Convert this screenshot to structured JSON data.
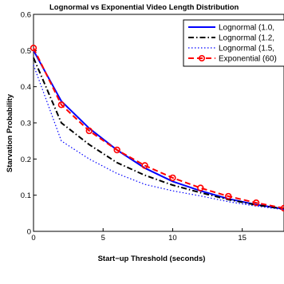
{
  "chart_data": {
    "type": "line",
    "title": "Lognormal vs Exponential Video Length Distribution",
    "xlabel": "Start−up Threshold (seconds)",
    "ylabel": "Starvation Probability",
    "xlim": [
      0,
      18
    ],
    "ylim": [
      0,
      0.6
    ],
    "xticks": [
      0,
      5,
      10,
      15
    ],
    "yticks": [
      0,
      0.1,
      0.2,
      0.3,
      0.4,
      0.5,
      0.6
    ],
    "grid": false,
    "legend_position": "top-right",
    "series": [
      {
        "name": "Lognormal (1.0,",
        "color": "#0000ff",
        "style": "solid",
        "x": [
          0,
          2,
          4,
          6,
          8,
          10,
          12,
          14,
          16,
          18
        ],
        "y": [
          0.5,
          0.36,
          0.285,
          0.225,
          0.175,
          0.138,
          0.112,
          0.09,
          0.074,
          0.062
        ]
      },
      {
        "name": "Lognormal (1.2,",
        "color": "#000000",
        "style": "dashdot",
        "x": [
          0,
          2,
          4,
          6,
          8,
          10,
          12,
          14,
          16,
          18
        ],
        "y": [
          0.48,
          0.3,
          0.24,
          0.19,
          0.155,
          0.128,
          0.107,
          0.088,
          0.073,
          0.062
        ]
      },
      {
        "name": "Lognormal (1.5,",
        "color": "#0000ff",
        "style": "dotted",
        "x": [
          0,
          2,
          4,
          6,
          8,
          10,
          12,
          14,
          16,
          18
        ],
        "y": [
          0.46,
          0.25,
          0.2,
          0.16,
          0.13,
          0.112,
          0.098,
          0.082,
          0.07,
          0.06
        ]
      },
      {
        "name": "Exponential (60)",
        "color": "#ff0000",
        "style": "dashed",
        "marker": "circle",
        "x": [
          0,
          2,
          4,
          6,
          8,
          10,
          12,
          14,
          16,
          18
        ],
        "y": [
          0.507,
          0.35,
          0.278,
          0.225,
          0.182,
          0.148,
          0.12,
          0.097,
          0.079,
          0.064
        ]
      }
    ]
  }
}
